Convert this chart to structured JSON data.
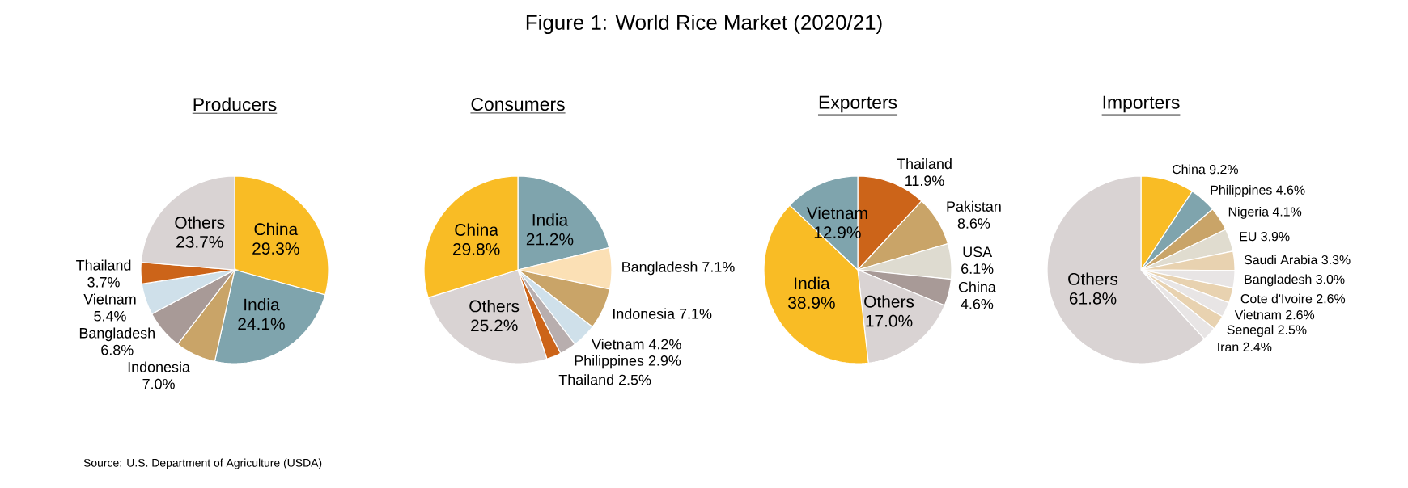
{
  "chart_data": [
    {
      "type": "other",
      "title": "Figure 1: World Rice Market (2020/21)",
      "annotations": [
        "Source: U.S. Department of Agriculture (USDA)"
      ]
    },
    {
      "type": "pie",
      "title": "Producers",
      "categories": [
        "China",
        "India",
        "Indonesia",
        "Bangladesh",
        "Vietnam",
        "Thailand",
        "Others"
      ],
      "values": [
        29.3,
        24.1,
        7.0,
        6.8,
        5.4,
        3.7,
        23.7
      ],
      "value_labels": [
        "29.3%",
        "24.1%",
        "7.0%",
        "6.8%",
        "5.4%",
        "3.7%",
        "23.7%"
      ],
      "colors": [
        "#f9bc25",
        "#7fa4ad",
        "#c9a468",
        "#a89a97",
        "#cfe0ea",
        "#cc6419",
        "#d9d3d3"
      ]
    },
    {
      "type": "pie",
      "title": "Consumers",
      "categories": [
        "India",
        "Bangladesh",
        "Indonesia",
        "Vietnam",
        "Philippines",
        "Thailand",
        "Others",
        "China"
      ],
      "values": [
        21.2,
        7.1,
        7.1,
        4.2,
        2.9,
        2.5,
        25.2,
        29.8
      ],
      "value_labels": [
        "21.2%",
        "7.1%",
        "7.1%",
        "4.2%",
        "2.9%",
        "2.5%",
        "25.2%",
        "29.8%"
      ],
      "colors": [
        "#7fa4ad",
        "#fbe0b5",
        "#c9a468",
        "#cfe0ea",
        "#b8aeae",
        "#cc6419",
        "#d9d3d3",
        "#f9bc25"
      ]
    },
    {
      "type": "pie",
      "title": "Exporters",
      "categories": [
        "Thailand",
        "Pakistan",
        "USA",
        "China",
        "Others",
        "India",
        "Vietnam"
      ],
      "values": [
        11.9,
        8.6,
        6.1,
        4.6,
        17.0,
        38.9,
        12.9
      ],
      "value_labels": [
        "11.9%",
        "8.6%",
        "6.1%",
        "4.6%",
        "17.0%",
        "38.9%",
        "12.9%"
      ],
      "colors": [
        "#cc6419",
        "#c9a468",
        "#dedbd0",
        "#a89a97",
        "#d9d3d3",
        "#f9bc25",
        "#7fa4ad"
      ]
    },
    {
      "type": "pie",
      "title": "Importers",
      "categories": [
        "China",
        "Philippines",
        "Nigeria",
        "EU",
        "Saudi Arabia",
        "Bangladesh",
        "Cote d'Ivoire",
        "Vietnam",
        "Senegal",
        "Iran",
        "Others"
      ],
      "values": [
        9.2,
        4.6,
        4.1,
        3.9,
        3.3,
        3.0,
        2.6,
        2.6,
        2.5,
        2.4,
        61.8
      ],
      "value_labels": [
        "9.2%",
        "4.6%",
        "4.1%",
        "3.9%",
        "3.3%",
        "3.0%",
        "2.6%",
        "2.6%",
        "2.5%",
        "2.4%",
        "61.8%"
      ],
      "colors": [
        "#f9bc25",
        "#7fa4ad",
        "#c9a468",
        "#e0dccf",
        "#e8d2b0",
        "#e8e5e5",
        "#e8d2b0",
        "#e8e5e5",
        "#e8d2b0",
        "#e8e5e5",
        "#d9d3d3"
      ]
    }
  ]
}
